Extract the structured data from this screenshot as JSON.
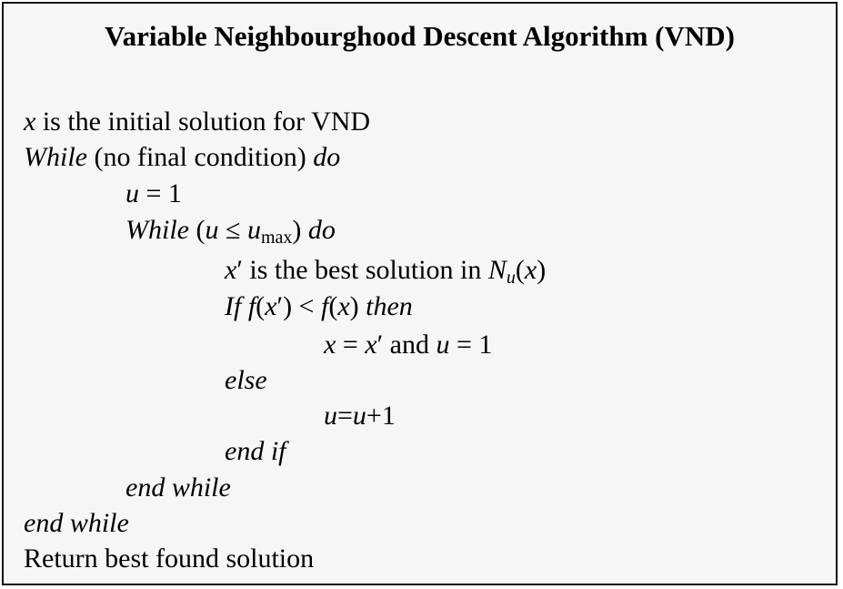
{
  "title": "Variable Neighbourghood Descent Algorithm (VND)",
  "lines": {
    "l1": {
      "a": "x",
      "b": " is the initial solution for VND"
    },
    "l2": {
      "a": "While",
      "b": " (no final condition) ",
      "c": "do"
    },
    "l3": {
      "a": "u",
      "b": " = 1"
    },
    "l4": {
      "a": "While",
      "b": " (",
      "c": "u",
      "d": " ≤ ",
      "e": "u",
      "f": "max",
      "g": ") ",
      "h": "do"
    },
    "l5": {
      "a": "x",
      "b": "′",
      "c": " is the best solution in ",
      "d": "N",
      "e": "u",
      "f": "(",
      "g": "x",
      "h": ")"
    },
    "l6": {
      "a": "If f",
      "b": "(",
      "c": "x",
      "d": "′",
      "e": ") < ",
      "f": "f",
      "g": "(",
      "h": "x",
      "i": ") ",
      "j": "then"
    },
    "l7": {
      "a": "x",
      "b": " = ",
      "c": "x",
      "d": "′",
      "e": " and ",
      "f": "u",
      "g": " = 1"
    },
    "l8": {
      "a": "else"
    },
    "l9": {
      "a": "u",
      "b": "=",
      "c": "u",
      "d": "+1"
    },
    "l10": {
      "a": "end if"
    },
    "l11": {
      "a": "end while"
    },
    "l12": {
      "a": "end while"
    },
    "l13": {
      "a": "Return best found solution"
    }
  }
}
